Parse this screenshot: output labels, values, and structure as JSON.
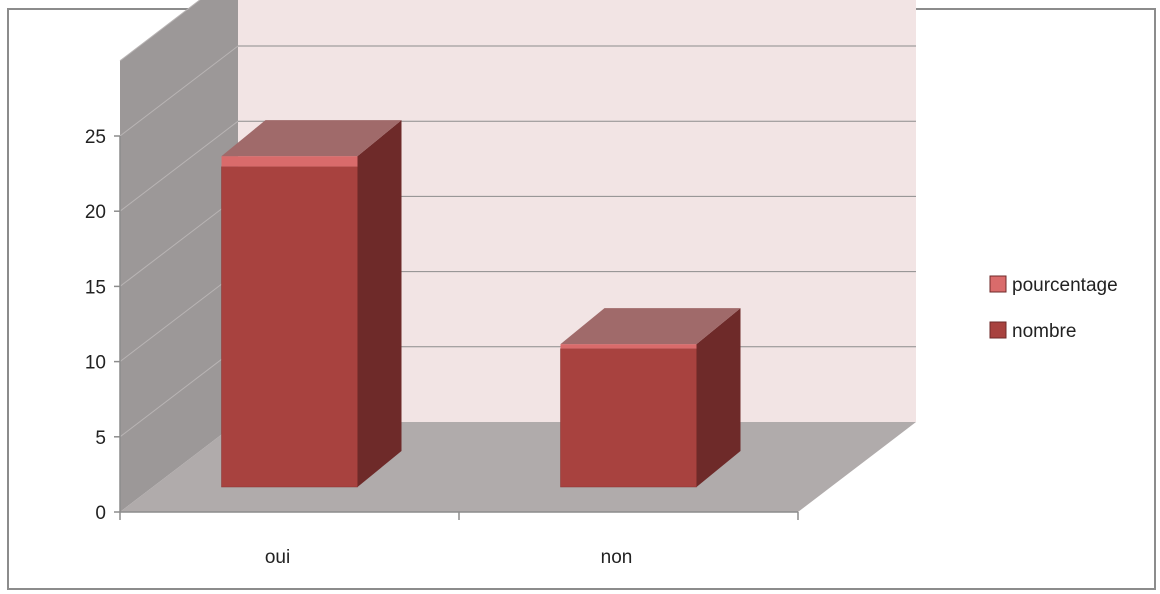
{
  "chart_data": {
    "type": "bar",
    "title": "",
    "xlabel": "",
    "ylabel": "",
    "categories": [
      "oui",
      "non"
    ],
    "series": [
      {
        "name": "pourcentage",
        "values": [
          0.7,
          0.3
        ],
        "color": "#d96b6b",
        "stacked_on_top": true
      },
      {
        "name": "nombre",
        "values": [
          21.3,
          9.2
        ],
        "color": "#a8423f"
      }
    ],
    "yticks": [
      "0",
      "5",
      "10",
      "15",
      "20",
      "25"
    ],
    "ylim": [
      0,
      25
    ],
    "grid": true,
    "legend": "right",
    "colors": {
      "back_wall": "#f2e4e4",
      "side_wall": "#9c9898",
      "floor": "#b0abab",
      "bar_front": "#a8423f",
      "bar_side": "#6e2a29",
      "bar_top": "#a06a6a",
      "pourcentage": "#d96b6b"
    }
  }
}
